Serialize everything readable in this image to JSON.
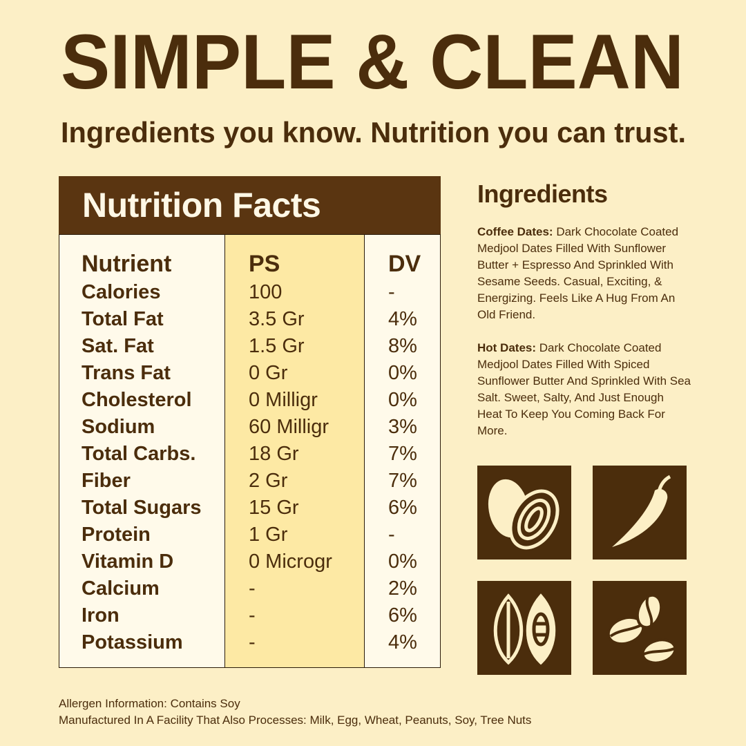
{
  "header": {
    "title": "SIMPLE & CLEAN",
    "subtitle": "Ingredients you know. Nutrition you can trust."
  },
  "nutrition": {
    "title": "Nutrition Facts",
    "columns": [
      "Nutrient",
      "PS",
      "DV"
    ],
    "rows": [
      [
        "Calories",
        "100",
        "-"
      ],
      [
        "Total Fat",
        "3.5 Gr",
        "4%"
      ],
      [
        "Sat. Fat",
        "1.5 Gr",
        "8%"
      ],
      [
        "Trans Fat",
        "0 Gr",
        "0%"
      ],
      [
        "Cholesterol",
        "0 Milligr",
        "0%"
      ],
      [
        "Sodium",
        "60 Milligr",
        "3%"
      ],
      [
        "Total Carbs.",
        "18 Gr",
        "7%"
      ],
      [
        "Fiber",
        "2 Gr",
        "7%"
      ],
      [
        "Total Sugars",
        "15 Gr",
        "6%"
      ],
      [
        "Protein",
        "1 Gr",
        "-"
      ],
      [
        "Vitamin D",
        "0 Microgr",
        "0%"
      ],
      [
        "Calcium",
        "-",
        "2%"
      ],
      [
        "Iron",
        "-",
        "6%"
      ],
      [
        "Potassium",
        "-",
        "4%"
      ]
    ]
  },
  "ingredients": {
    "title": "Ingredients",
    "items": [
      {
        "name": "Coffee Dates:",
        "text": "Dark Chocolate Coated Medjool Dates Filled With Sunflower Butter + Espresso And Sprinkled With Sesame Seeds. Casual, Exciting, & Energizing. Feels Like A Hug From An Old Friend."
      },
      {
        "name": "Hot Dates:",
        "text": "Dark Chocolate Coated Medjool Dates Filled With Spiced Sunflower Butter And Sprinkled With Sea Salt. Sweet, Salty, And Just Enough Heat To Keep You Coming Back For More."
      }
    ]
  },
  "footer": {
    "lines": [
      "Allergen Information: Contains Soy",
      "Manufactured In A Facility That Also Processes: Milk, Egg, Wheat, Peanuts, Soy, Tree Nuts"
    ]
  }
}
